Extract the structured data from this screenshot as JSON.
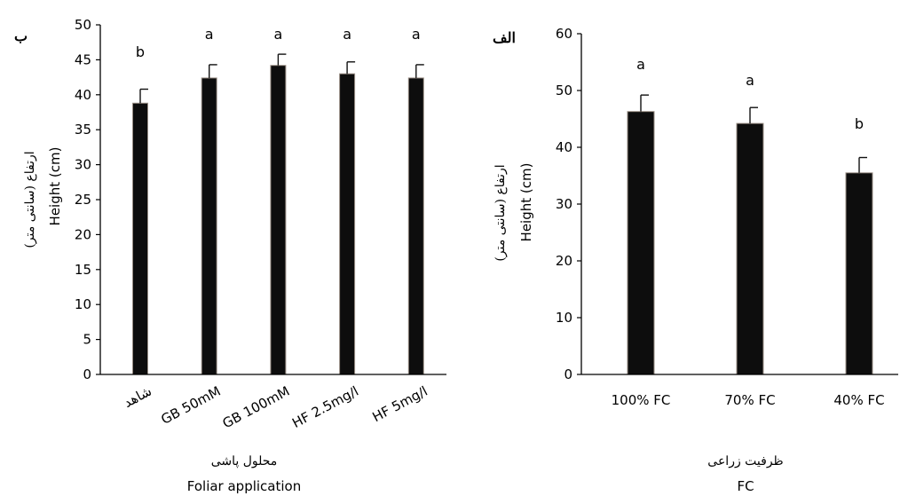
{
  "chart_data": [
    {
      "type": "bar",
      "panel_label": "ب",
      "categories": [
        "شاهد",
        "GB 50mM",
        "GB 100mM",
        "HF 2.5mg/l",
        "HF 5mg/l"
      ],
      "values": [
        38.8,
        42.4,
        44.2,
        43.0,
        42.4
      ],
      "errors": [
        2.0,
        1.9,
        1.6,
        1.7,
        1.9
      ],
      "significance": [
        "b",
        "a",
        "a",
        "a",
        "a"
      ],
      "ylim": [
        0,
        50
      ],
      "yticks": [
        0,
        5,
        10,
        15,
        20,
        25,
        30,
        35,
        40,
        45,
        50
      ],
      "ylabel": "Height (cm)",
      "ylabel_fa": "ارتفاع (سانتی متر)",
      "xlabel": "Foliar application",
      "xlabel_fa": "محلول پاشی",
      "bar_color": "#0d0d0d"
    },
    {
      "type": "bar",
      "panel_label": "الف",
      "categories": [
        "100% FC",
        "70% FC",
        "40% FC"
      ],
      "values": [
        46.3,
        44.2,
        35.5
      ],
      "errors": [
        2.9,
        2.8,
        2.7
      ],
      "significance": [
        "a",
        "a",
        "b"
      ],
      "ylim": [
        0,
        60
      ],
      "yticks": [
        0,
        10,
        20,
        30,
        40,
        50,
        60
      ],
      "ylabel": "Height (cm)",
      "ylabel_fa": "ارتفاع (سانتی متر)",
      "xlabel": "FC",
      "xlabel_fa": "ظرفیت زراعی",
      "bar_color": "#0d0d0d"
    }
  ]
}
